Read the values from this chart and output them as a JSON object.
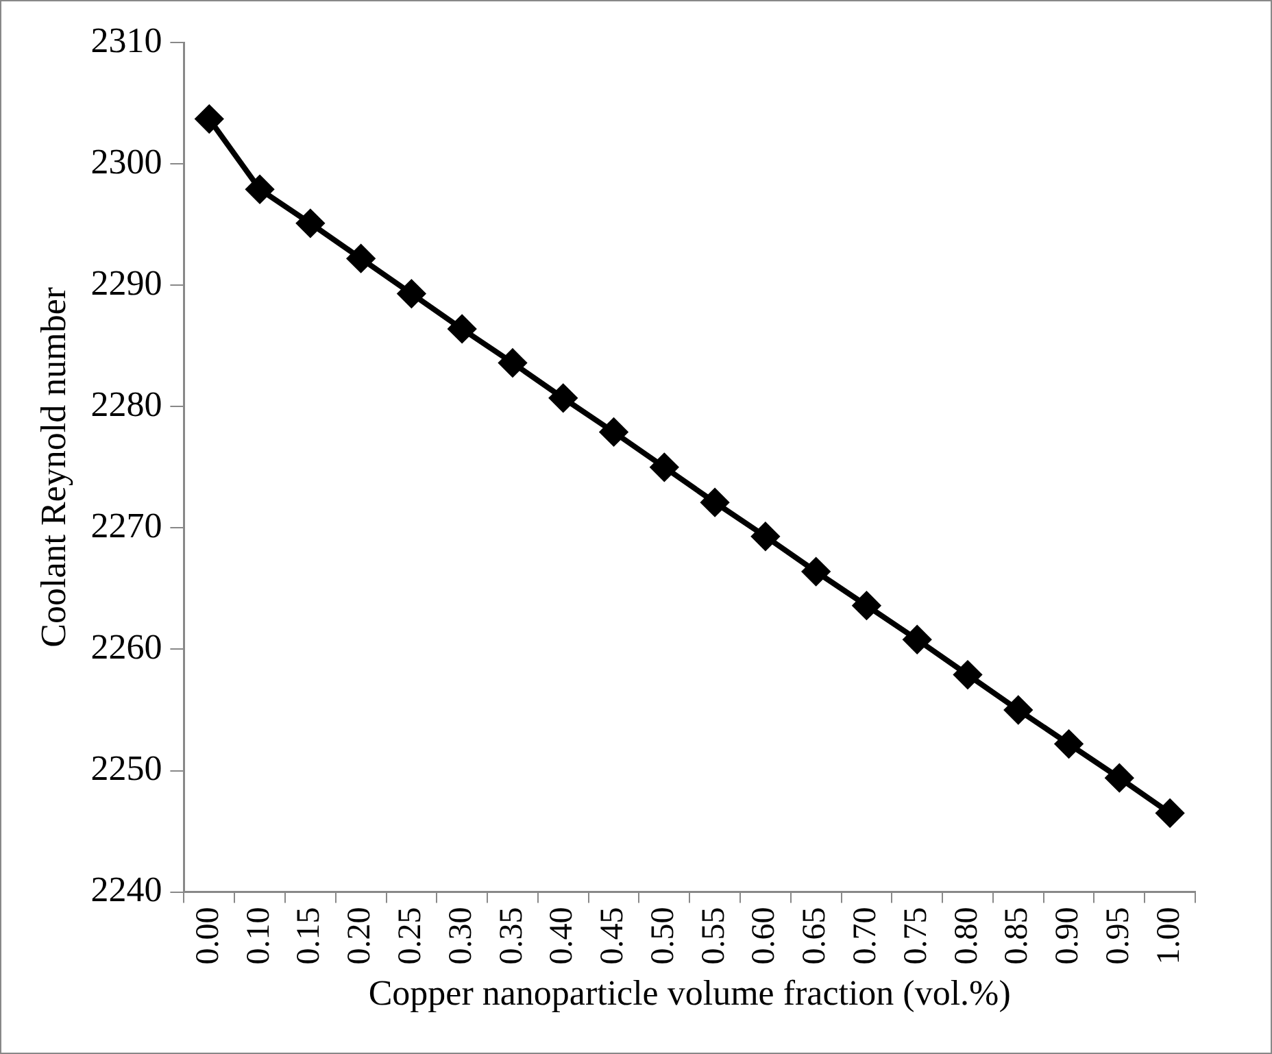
{
  "chart_data": {
    "type": "line",
    "xlabel": "Copper nanoparticle volume fraction (vol.%)",
    "ylabel": "Coolant Reynold number",
    "categories": [
      "0.00",
      "0.10",
      "0.15",
      "0.20",
      "0.25",
      "0.30",
      "0.35",
      "0.40",
      "0.45",
      "0.50",
      "0.55",
      "0.60",
      "0.65",
      "0.70",
      "0.75",
      "0.80",
      "0.85",
      "0.90",
      "0.95",
      "1.00"
    ],
    "series": [
      {
        "color": "#000000",
        "values": [
          2303.7,
          2297.9,
          2295.1,
          2292.2,
          2289.3,
          2286.4,
          2283.6,
          2280.7,
          2277.9,
          2275.0,
          2272.1,
          2269.3,
          2266.4,
          2263.6,
          2260.8,
          2257.9,
          2255.0,
          2252.2,
          2249.4,
          2246.5
        ]
      }
    ],
    "ylim": [
      2240,
      2310
    ],
    "yticks": [
      2240,
      2250,
      2260,
      2270,
      2280,
      2290,
      2300,
      2310
    ],
    "grid": false,
    "legend": false,
    "marker": "diamond",
    "line_style": "solid"
  }
}
